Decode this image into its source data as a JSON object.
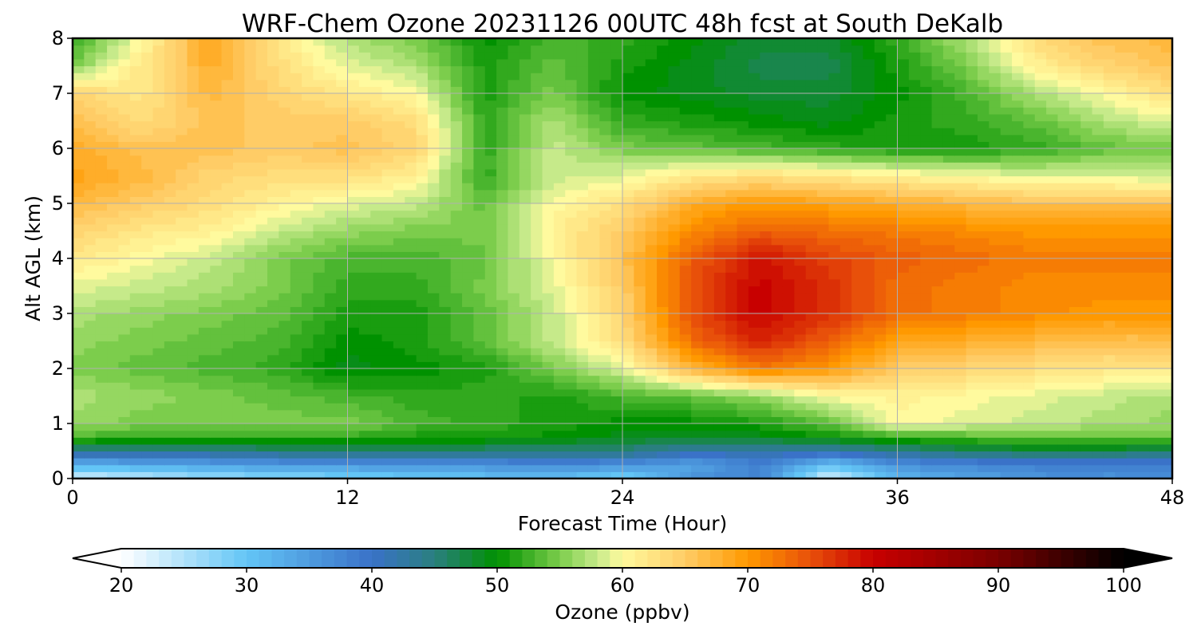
{
  "chart_data": {
    "type": "heatmap",
    "title": "WRF-Chem Ozone  20231126 00UTC 48h fcst at South DeKalb",
    "xlabel": "Forecast Time (Hour)",
    "ylabel": "Alt AGL (km)",
    "xlim": [
      0,
      48
    ],
    "ylim": [
      0,
      8
    ],
    "xticks": [
      0,
      12,
      24,
      36,
      48
    ],
    "yticks": [
      0,
      1,
      2,
      3,
      4,
      5,
      6,
      7,
      8
    ],
    "grid": true,
    "x": [
      0,
      3,
      6,
      9,
      12,
      15,
      18,
      21,
      24,
      27,
      30,
      33,
      36,
      39,
      42,
      45,
      48
    ],
    "y": [
      0,
      0.25,
      0.5,
      0.75,
      1,
      1.5,
      2,
      2.5,
      3,
      3.5,
      4,
      4.5,
      5,
      5.5,
      6,
      6.5,
      7,
      7.5,
      8
    ],
    "z": [
      [
        22,
        24,
        26,
        27,
        28,
        29,
        30,
        31,
        28,
        36,
        38,
        22,
        32,
        34,
        36,
        36,
        36
      ],
      [
        32,
        33,
        34,
        35,
        35,
        36,
        36,
        37,
        36,
        34,
        38,
        30,
        36,
        37,
        38,
        38,
        38
      ],
      [
        44,
        44,
        44,
        45,
        45,
        45,
        45,
        45,
        45,
        42,
        42,
        42,
        44,
        46,
        47,
        47,
        46
      ],
      [
        53,
        52,
        52,
        52,
        52,
        51,
        51,
        50,
        49,
        48,
        49,
        50,
        52,
        53,
        54,
        54,
        54
      ],
      [
        56,
        55,
        55,
        55,
        55,
        53,
        52,
        51,
        50,
        50,
        51,
        54,
        60,
        59,
        58,
        57,
        56
      ],
      [
        57,
        56,
        55,
        54,
        53,
        52,
        52,
        51,
        53,
        54,
        56,
        60,
        61,
        60,
        59,
        58,
        57
      ],
      [
        55,
        54,
        53,
        52,
        49,
        50,
        51,
        55,
        59,
        67,
        72,
        70,
        65,
        64,
        63,
        62,
        62
      ],
      [
        56,
        55,
        54,
        53,
        50,
        51,
        54,
        58,
        63,
        73,
        78,
        74,
        69,
        68,
        67,
        66,
        66
      ],
      [
        57,
        56,
        55,
        54,
        51,
        51,
        54,
        58,
        64,
        75,
        80,
        77,
        73,
        72,
        71,
        70,
        70
      ],
      [
        59,
        58,
        57,
        55,
        52,
        52,
        55,
        59,
        65,
        75,
        80,
        77,
        73,
        72,
        71,
        71,
        71
      ],
      [
        62,
        60,
        58,
        55,
        53,
        53,
        54,
        60,
        66,
        74,
        79,
        76,
        74,
        73,
        72,
        72,
        72
      ],
      [
        64,
        62,
        61,
        58,
        56,
        55,
        55,
        61,
        65,
        71,
        74,
        73,
        72,
        71,
        70,
        70,
        70
      ],
      [
        67,
        65,
        63,
        61,
        59,
        58,
        54,
        60,
        63,
        68,
        70,
        69,
        68,
        67,
        66,
        66,
        66
      ],
      [
        69,
        67,
        64,
        63,
        63,
        61,
        52,
        58,
        59,
        62,
        63,
        62,
        61,
        60,
        59,
        59,
        58
      ],
      [
        68,
        66,
        66,
        65,
        66,
        64,
        52,
        58,
        55,
        54,
        53,
        52,
        51,
        51,
        52,
        54,
        55
      ],
      [
        66,
        63,
        66,
        65,
        65,
        63,
        52,
        57,
        52,
        51,
        50,
        49,
        51,
        52,
        54,
        57,
        59
      ],
      [
        64,
        62,
        67,
        64,
        62,
        60,
        51,
        55,
        50,
        49,
        48,
        48,
        50,
        53,
        57,
        60,
        63
      ],
      [
        55,
        62,
        68,
        63,
        59,
        57,
        51,
        54,
        51,
        49,
        47,
        47,
        51,
        55,
        61,
        64,
        66
      ],
      [
        52,
        60,
        69,
        62,
        57,
        55,
        50,
        53,
        52,
        50,
        48,
        48,
        52,
        57,
        63,
        66,
        67
      ]
    ],
    "colorbar": {
      "label": "Ozone  (ppbv)",
      "min": 20,
      "max": 100,
      "ticks": [
        20,
        30,
        40,
        50,
        60,
        70,
        80,
        90,
        100
      ],
      "extend": "both",
      "stops": [
        [
          20,
          "#ffffff"
        ],
        [
          30,
          "#63c5f6"
        ],
        [
          40,
          "#3a72c8"
        ],
        [
          45,
          "#2a7f7f"
        ],
        [
          50,
          "#009100"
        ],
        [
          55,
          "#7ccd4c"
        ],
        [
          58,
          "#c6ea8a"
        ],
        [
          60,
          "#fffa9e"
        ],
        [
          65,
          "#ffcc66"
        ],
        [
          70,
          "#ff9900"
        ],
        [
          75,
          "#e8500a"
        ],
        [
          80,
          "#c80000"
        ],
        [
          90,
          "#7a0000"
        ],
        [
          100,
          "#000000"
        ]
      ]
    }
  }
}
